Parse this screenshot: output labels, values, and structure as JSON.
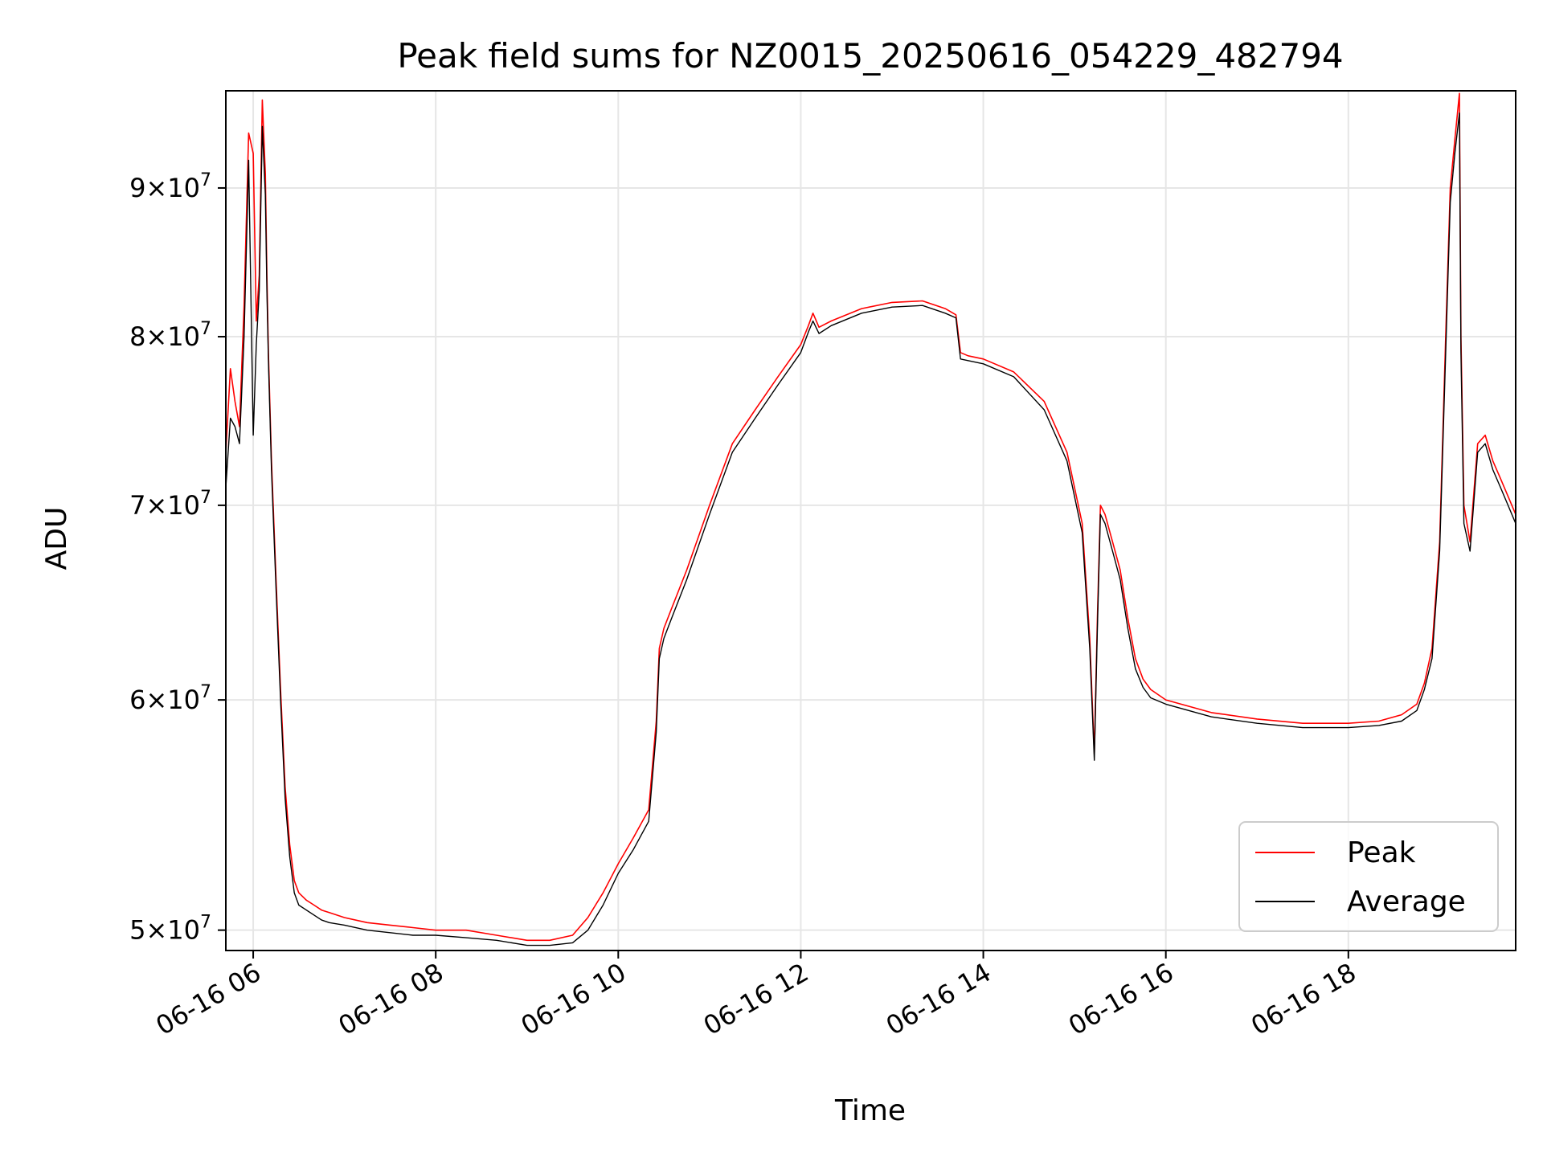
{
  "chart_data": {
    "type": "line",
    "title": "Peak field sums for NZ0015_20250616_054229_482794",
    "xlabel": "Time",
    "ylabel": "ADU",
    "yscale": "log",
    "grid": true,
    "legend_placement": "lower-right",
    "x_range": [
      "2025-06-16T05:42",
      "2025-06-16T19:50"
    ],
    "y_range": [
      49200000,
      97200000
    ],
    "x_ticks": [
      {
        "value": "2025-06-16T06:00",
        "label": "06-16 06"
      },
      {
        "value": "2025-06-16T08:00",
        "label": "06-16 08"
      },
      {
        "value": "2025-06-16T10:00",
        "label": "06-16 10"
      },
      {
        "value": "2025-06-16T12:00",
        "label": "06-16 12"
      },
      {
        "value": "2025-06-16T14:00",
        "label": "06-16 14"
      },
      {
        "value": "2025-06-16T16:00",
        "label": "06-16 16"
      },
      {
        "value": "2025-06-16T18:00",
        "label": "06-16 18"
      }
    ],
    "y_ticks": [
      {
        "value": 50000000,
        "mantissa": "5",
        "exponent": "7"
      },
      {
        "value": 60000000,
        "mantissa": "6",
        "exponent": "7"
      },
      {
        "value": 70000000,
        "mantissa": "7",
        "exponent": "7"
      },
      {
        "value": 80000000,
        "mantissa": "8",
        "exponent": "7"
      },
      {
        "value": 90000000,
        "mantissa": "9",
        "exponent": "7"
      }
    ],
    "series": [
      {
        "name": "Peak",
        "color": "#ff0000",
        "x": [
          "2025-06-16T05:42",
          "2025-06-16T05:45",
          "2025-06-16T05:48",
          "2025-06-16T05:51",
          "2025-06-16T05:54",
          "2025-06-16T05:57",
          "2025-06-16T06:00",
          "2025-06-16T06:02",
          "2025-06-16T06:04",
          "2025-06-16T06:06",
          "2025-06-16T06:08",
          "2025-06-16T06:09",
          "2025-06-16T06:10",
          "2025-06-16T06:12",
          "2025-06-16T06:15",
          "2025-06-16T06:18",
          "2025-06-16T06:21",
          "2025-06-16T06:24",
          "2025-06-16T06:27",
          "2025-06-16T06:30",
          "2025-06-16T06:35",
          "2025-06-16T06:40",
          "2025-06-16T06:45",
          "2025-06-16T06:50",
          "2025-06-16T07:00",
          "2025-06-16T07:15",
          "2025-06-16T07:30",
          "2025-06-16T07:45",
          "2025-06-16T08:00",
          "2025-06-16T08:20",
          "2025-06-16T08:40",
          "2025-06-16T09:00",
          "2025-06-16T09:15",
          "2025-06-16T09:30",
          "2025-06-16T09:40",
          "2025-06-16T09:50",
          "2025-06-16T10:00",
          "2025-06-16T10:10",
          "2025-06-16T10:20",
          "2025-06-16T10:25",
          "2025-06-16T10:27",
          "2025-06-16T10:30",
          "2025-06-16T10:35",
          "2025-06-16T10:45",
          "2025-06-16T11:00",
          "2025-06-16T11:15",
          "2025-06-16T11:30",
          "2025-06-16T11:45",
          "2025-06-16T12:00",
          "2025-06-16T12:05",
          "2025-06-16T12:08",
          "2025-06-16T12:12",
          "2025-06-16T12:20",
          "2025-06-16T12:40",
          "2025-06-16T13:00",
          "2025-06-16T13:20",
          "2025-06-16T13:35",
          "2025-06-16T13:42",
          "2025-06-16T13:45",
          "2025-06-16T13:50",
          "2025-06-16T14:00",
          "2025-06-16T14:20",
          "2025-06-16T14:40",
          "2025-06-16T14:55",
          "2025-06-16T15:05",
          "2025-06-16T15:10",
          "2025-06-16T15:13",
          "2025-06-16T15:15",
          "2025-06-16T15:17",
          "2025-06-16T15:20",
          "2025-06-16T15:25",
          "2025-06-16T15:30",
          "2025-06-16T15:35",
          "2025-06-16T15:40",
          "2025-06-16T15:45",
          "2025-06-16T15:50",
          "2025-06-16T16:00",
          "2025-06-16T16:15",
          "2025-06-16T16:30",
          "2025-06-16T17:00",
          "2025-06-16T17:30",
          "2025-06-16T18:00",
          "2025-06-16T18:20",
          "2025-06-16T18:35",
          "2025-06-16T18:45",
          "2025-06-16T18:50",
          "2025-06-16T18:55",
          "2025-06-16T19:00",
          "2025-06-16T19:04",
          "2025-06-16T19:07",
          "2025-06-16T19:10",
          "2025-06-16T19:13",
          "2025-06-16T19:14",
          "2025-06-16T19:16",
          "2025-06-16T19:20",
          "2025-06-16T19:25",
          "2025-06-16T19:30",
          "2025-06-16T19:35",
          "2025-06-16T19:40",
          "2025-06-16T19:45",
          "2025-06-16T19:50"
        ],
        "y": [
          73000000,
          78000000,
          76000000,
          74500000,
          82000000,
          94000000,
          92500000,
          81000000,
          84000000,
          96500000,
          91000000,
          84000000,
          79000000,
          72500000,
          66000000,
          60500000,
          56000000,
          53500000,
          52000000,
          51500000,
          51200000,
          51000000,
          50800000,
          50700000,
          50500000,
          50300000,
          50200000,
          50100000,
          50000000,
          50000000,
          49800000,
          49600000,
          49600000,
          49800000,
          50500000,
          51500000,
          52700000,
          53800000,
          55000000,
          59000000,
          62500000,
          63500000,
          64500000,
          66500000,
          70000000,
          73500000,
          75500000,
          77500000,
          79500000,
          80700000,
          81500000,
          80600000,
          81000000,
          81800000,
          82200000,
          82300000,
          81800000,
          81400000,
          79000000,
          78800000,
          78600000,
          77800000,
          76000000,
          73000000,
          69000000,
          63000000,
          57500000,
          64000000,
          70000000,
          69500000,
          68000000,
          66500000,
          64000000,
          62000000,
          61000000,
          60500000,
          60000000,
          59700000,
          59400000,
          59100000,
          58900000,
          58900000,
          59000000,
          59300000,
          59800000,
          60800000,
          62500000,
          68000000,
          80000000,
          90000000,
          93500000,
          97000000,
          80000000,
          70000000,
          68000000,
          73500000,
          74000000,
          72500000,
          71500000,
          70500000,
          69500000
        ]
      },
      {
        "name": "Average",
        "color": "#000000",
        "x": [
          "2025-06-16T05:42",
          "2025-06-16T05:45",
          "2025-06-16T05:48",
          "2025-06-16T05:51",
          "2025-06-16T05:54",
          "2025-06-16T05:57",
          "2025-06-16T06:00",
          "2025-06-16T06:02",
          "2025-06-16T06:04",
          "2025-06-16T06:06",
          "2025-06-16T06:08",
          "2025-06-16T06:09",
          "2025-06-16T06:10",
          "2025-06-16T06:12",
          "2025-06-16T06:15",
          "2025-06-16T06:18",
          "2025-06-16T06:21",
          "2025-06-16T06:24",
          "2025-06-16T06:27",
          "2025-06-16T06:30",
          "2025-06-16T06:35",
          "2025-06-16T06:40",
          "2025-06-16T06:45",
          "2025-06-16T06:50",
          "2025-06-16T07:00",
          "2025-06-16T07:15",
          "2025-06-16T07:30",
          "2025-06-16T07:45",
          "2025-06-16T08:00",
          "2025-06-16T08:20",
          "2025-06-16T08:40",
          "2025-06-16T09:00",
          "2025-06-16T09:15",
          "2025-06-16T09:30",
          "2025-06-16T09:40",
          "2025-06-16T09:50",
          "2025-06-16T10:00",
          "2025-06-16T10:10",
          "2025-06-16T10:20",
          "2025-06-16T10:25",
          "2025-06-16T10:27",
          "2025-06-16T10:30",
          "2025-06-16T10:35",
          "2025-06-16T10:45",
          "2025-06-16T11:00",
          "2025-06-16T11:15",
          "2025-06-16T11:30",
          "2025-06-16T11:45",
          "2025-06-16T12:00",
          "2025-06-16T12:05",
          "2025-06-16T12:08",
          "2025-06-16T12:12",
          "2025-06-16T12:20",
          "2025-06-16T12:40",
          "2025-06-16T13:00",
          "2025-06-16T13:20",
          "2025-06-16T13:35",
          "2025-06-16T13:42",
          "2025-06-16T13:45",
          "2025-06-16T13:50",
          "2025-06-16T14:00",
          "2025-06-16T14:20",
          "2025-06-16T14:40",
          "2025-06-16T14:55",
          "2025-06-16T15:05",
          "2025-06-16T15:10",
          "2025-06-16T15:13",
          "2025-06-16T15:15",
          "2025-06-16T15:17",
          "2025-06-16T15:20",
          "2025-06-16T15:25",
          "2025-06-16T15:30",
          "2025-06-16T15:35",
          "2025-06-16T15:40",
          "2025-06-16T15:45",
          "2025-06-16T15:50",
          "2025-06-16T16:00",
          "2025-06-16T16:15",
          "2025-06-16T16:30",
          "2025-06-16T17:00",
          "2025-06-16T17:30",
          "2025-06-16T18:00",
          "2025-06-16T18:20",
          "2025-06-16T18:35",
          "2025-06-16T18:45",
          "2025-06-16T18:50",
          "2025-06-16T18:55",
          "2025-06-16T19:00",
          "2025-06-16T19:04",
          "2025-06-16T19:07",
          "2025-06-16T19:10",
          "2025-06-16T19:13",
          "2025-06-16T19:14",
          "2025-06-16T19:16",
          "2025-06-16T19:20",
          "2025-06-16T19:25",
          "2025-06-16T19:30",
          "2025-06-16T19:35",
          "2025-06-16T19:40",
          "2025-06-16T19:45",
          "2025-06-16T19:50"
        ],
        "y": [
          71000000,
          75000000,
          74500000,
          73500000,
          80000000,
          92000000,
          74000000,
          79500000,
          83000000,
          94500000,
          89500000,
          83000000,
          78500000,
          72000000,
          65500000,
          60000000,
          55500000,
          53000000,
          51500000,
          51000000,
          50800000,
          50600000,
          50400000,
          50300000,
          50200000,
          50000000,
          49900000,
          49800000,
          49800000,
          49700000,
          49600000,
          49400000,
          49400000,
          49500000,
          50000000,
          51000000,
          52300000,
          53300000,
          54500000,
          58500000,
          62000000,
          63000000,
          64000000,
          66000000,
          69500000,
          73000000,
          75000000,
          77000000,
          79000000,
          80300000,
          81000000,
          80200000,
          80700000,
          81500000,
          81900000,
          82000000,
          81500000,
          81200000,
          78600000,
          78500000,
          78300000,
          77500000,
          75500000,
          72500000,
          68500000,
          62500000,
          57200000,
          63500000,
          69500000,
          69000000,
          67500000,
          66000000,
          63500000,
          61500000,
          60600000,
          60100000,
          59800000,
          59500000,
          59200000,
          58900000,
          58700000,
          58700000,
          58800000,
          59000000,
          59500000,
          60500000,
          62000000,
          67500000,
          79000000,
          89000000,
          92500000,
          95500000,
          79000000,
          69000000,
          67500000,
          73000000,
          73500000,
          72000000,
          71000000,
          70000000,
          69000000
        ]
      }
    ]
  }
}
